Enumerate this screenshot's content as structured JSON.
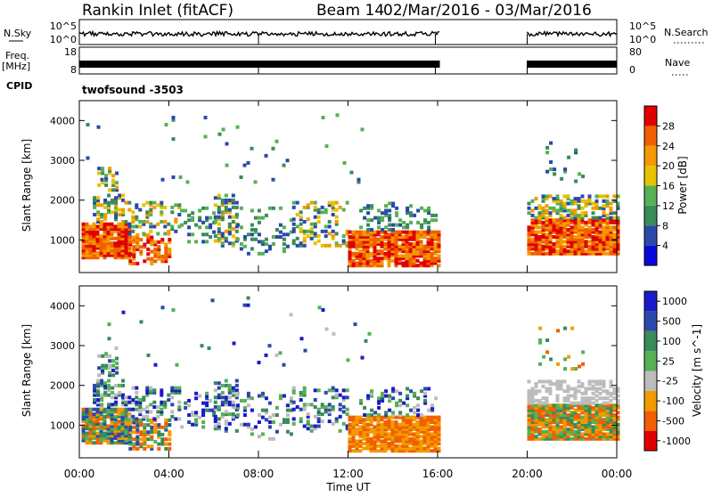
{
  "header": {
    "station": "Rankin Inlet (fitACF)",
    "beam": "Beam 14",
    "dates": "02/Mar/2016 - 03/Mar/2016"
  },
  "rows": {
    "nsky": {
      "label": "N.Sky",
      "left_top": "10^5",
      "left_bottom": "10^0",
      "right_top": "10^5",
      "right_bottom": "10^0",
      "right_label": "N.Search"
    },
    "freq": {
      "label": "Freq.",
      "unit": "[MHz]",
      "left_top": "18",
      "left_bottom": "8",
      "right_top": "80",
      "right_bottom": "0",
      "right_label": "Nave"
    },
    "cpid": {
      "label": "CPID",
      "value": "twofsound -3503"
    }
  },
  "colors": {
    "power": [
      "#0a0ad8",
      "#2a49a8",
      "#3a8a5a",
      "#56b055",
      "#e6c200",
      "#f39a00",
      "#f06000",
      "#e00000"
    ],
    "velocity": [
      "#e00000",
      "#f06000",
      "#f39a00",
      "#bcbcbc",
      "#56b055",
      "#3a8a5a",
      "#2a49a8",
      "#1a1ac8"
    ]
  },
  "chart_data": [
    {
      "type": "heatmap",
      "name": "power",
      "xlabel": "Time UT",
      "ylabel": "Slant Range [km]",
      "x_ticks": [
        "00:00",
        "04:00",
        "08:00",
        "12:00",
        "16:00",
        "20:00",
        "00:00"
      ],
      "y_ticks": [
        1000,
        2000,
        3000,
        4000
      ],
      "xlim_hours": [
        0,
        24
      ],
      "ylim_km": [
        180,
        4500
      ],
      "data_gap_hours": [
        16.1,
        20.0
      ],
      "colorbar": {
        "title": "Power [dB]",
        "ticks": [
          "4",
          "8",
          "12",
          "16",
          "20",
          "24",
          "28"
        ],
        "range": [
          0,
          32
        ]
      }
    },
    {
      "type": "heatmap",
      "name": "velocity",
      "xlabel": "Time UT",
      "ylabel": "Slant Range [km]",
      "x_ticks": [
        "00:00",
        "04:00",
        "08:00",
        "12:00",
        "16:00",
        "20:00",
        "00:00"
      ],
      "y_ticks": [
        1000,
        2000,
        3000,
        4000
      ],
      "xlim_hours": [
        0,
        24
      ],
      "ylim_km": [
        180,
        4500
      ],
      "data_gap_hours": [
        16.1,
        20.0
      ],
      "colorbar": {
        "title": "Velocity [m s^-1]",
        "ticks": [
          "1000",
          "500",
          "100",
          "25",
          "-25",
          "-100",
          "-500",
          "-1000"
        ]
      }
    }
  ]
}
